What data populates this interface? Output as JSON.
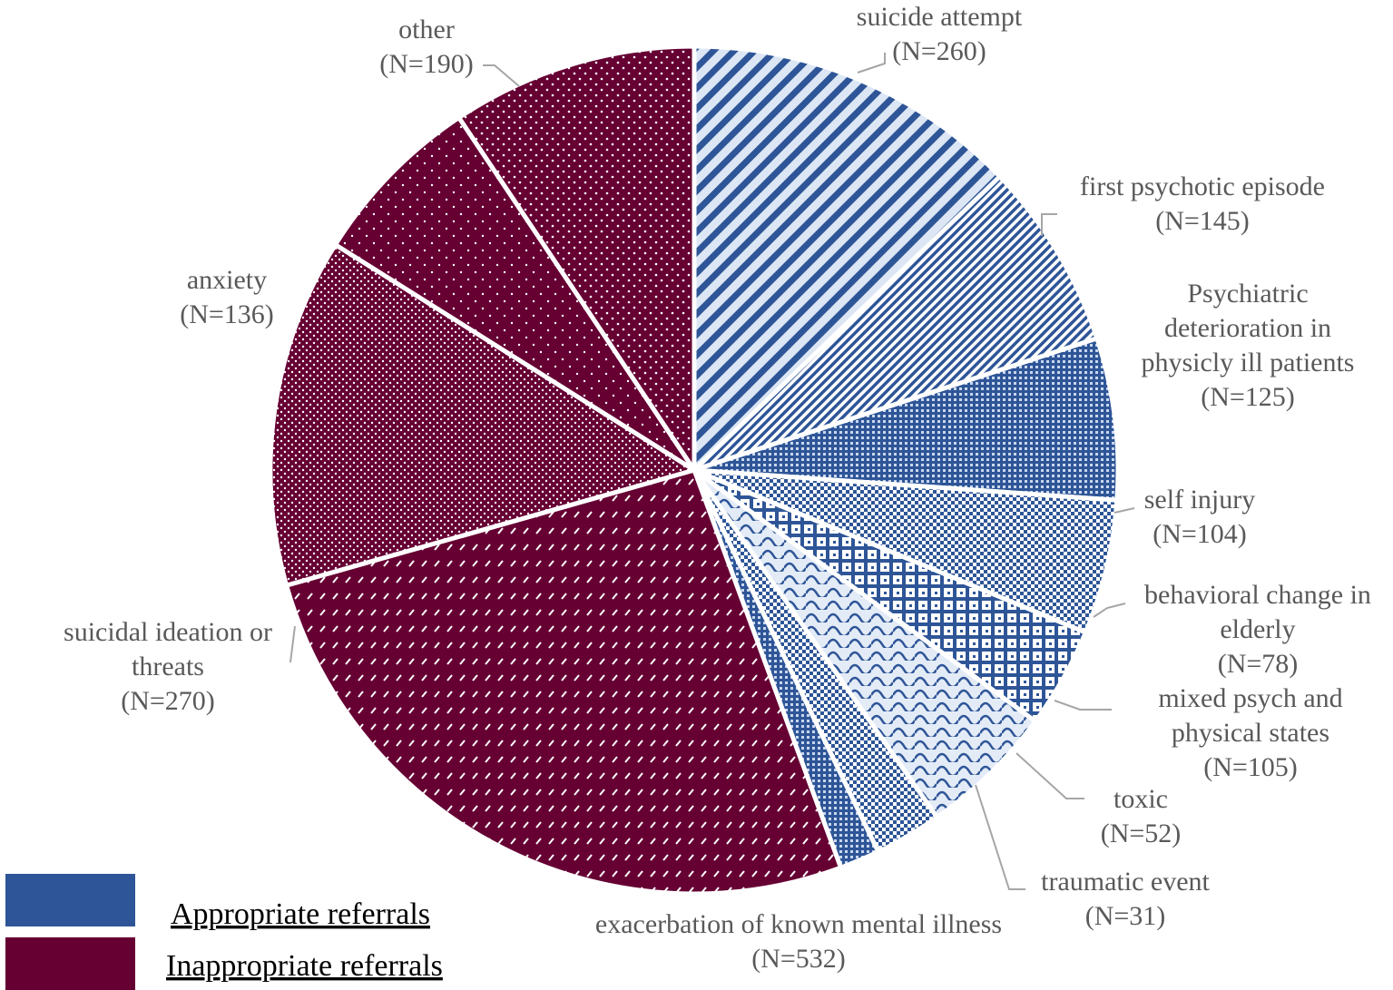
{
  "chart_data": {
    "type": "pie",
    "title": "",
    "slices": [
      {
        "label": [
          "suicide attempt",
          "(N=260)"
        ],
        "name": "suicide attempt",
        "value": 260,
        "group": "appropriate",
        "pattern": "diag-stripes"
      },
      {
        "label": [
          "first psychotic episode",
          "(N=145)"
        ],
        "name": "first psychotic episode",
        "value": 145,
        "group": "appropriate",
        "pattern": "fine-diag"
      },
      {
        "label": [
          "Psychiatric",
          "deterioration in",
          "physicly ill patients",
          "(N=125)"
        ],
        "name": "Psychiatric deterioration in physicly ill patients",
        "value": 125,
        "group": "appropriate",
        "pattern": "fine-grid"
      },
      {
        "label": [
          "self injury",
          "(N=104)"
        ],
        "name": "self injury",
        "value": 104,
        "group": "appropriate",
        "pattern": "checker"
      },
      {
        "label": [
          "behavioral change in",
          "elderly",
          "(N=78)"
        ],
        "name": "behavioral change in elderly",
        "value": 78,
        "group": "appropriate",
        "pattern": "plaid"
      },
      {
        "label": [
          "mixed psych and",
          "physical states",
          "(N=105)"
        ],
        "name": "mixed psych and physical states",
        "value": 105,
        "group": "appropriate",
        "pattern": "wave"
      },
      {
        "label": [
          "toxic",
          "(N=52)"
        ],
        "name": "toxic",
        "value": 52,
        "group": "appropriate",
        "pattern": "checker"
      },
      {
        "label": [
          "traumatic event",
          "(N=31)"
        ],
        "name": "traumatic event",
        "value": 31,
        "group": "appropriate",
        "pattern": "fine-grid"
      },
      {
        "label": [
          "exacerbation of known mental illness",
          "(N=532)"
        ],
        "name": "exacerbation of known mental illness",
        "value": 532,
        "group": "inappropriate",
        "pattern": "dash-dots"
      },
      {
        "label": [
          "suicidal ideation or",
          "threats",
          "(N=270)"
        ],
        "name": "suicidal ideation or threats",
        "value": 270,
        "group": "inappropriate",
        "pattern": "dense-dots"
      },
      {
        "label": [
          "anxiety",
          "(N=136)"
        ],
        "name": "anxiety",
        "value": 136,
        "group": "inappropriate",
        "pattern": "sparse-dots"
      },
      {
        "label": [
          "other",
          "(N=190)"
        ],
        "name": "other",
        "value": 190,
        "group": "inappropriate",
        "pattern": "dots"
      }
    ],
    "legend": {
      "placement": "bottom-left",
      "items": [
        {
          "label": "Appropriate referrals",
          "color": "#2e5597"
        },
        {
          "label": "Inappropriate referrals",
          "color": "#660033"
        }
      ]
    },
    "colors": {
      "appropriate": "#2e5597",
      "appropriate_light": "#dce6f4",
      "inappropriate": "#660033",
      "separator": "#ffffff",
      "label_text": "#595959"
    }
  }
}
